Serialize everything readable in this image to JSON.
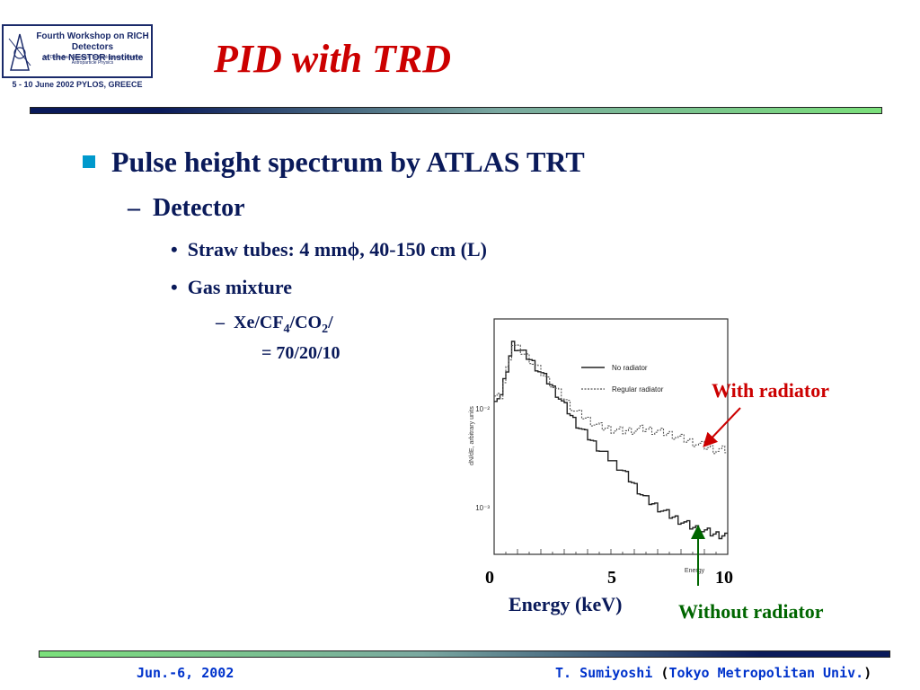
{
  "logo": {
    "line1": "Fourth Workshop on RICH Detectors",
    "line2": "at the NESTOR Institute",
    "line3": "for Deep Sea Research Technology and Neutrino Astroparticle Physics",
    "caption": "5 - 10 June 2002  PYLOS, GREECE"
  },
  "title": "PID with TRD",
  "bullets": {
    "level1": "Pulse height spectrum by ATLAS TRT",
    "level2": "Detector",
    "item1": "Straw tubes: 4 mmϕ, 40-150 cm (L)",
    "item2": "Gas mixture",
    "gas_prefix": "Xe/CF",
    "gas_sub1": "4",
    "gas_mid": "/CO",
    "gas_sub2": "2",
    "gas_suffix": "/",
    "gas_ratio": "= 70/20/10"
  },
  "annotations": {
    "with_radiator": "With radiator",
    "without_radiator": "Without radiator",
    "energy_label": "Energy (keV)",
    "x0": "0",
    "x5": "5",
    "x10": "10"
  },
  "footer": {
    "date": "Jun.-6, 2002",
    "author": "T. Sumiyoshi",
    "open": "(",
    "affiliation": "Tokyo Metropolitan Univ.",
    "close": ")"
  },
  "colors": {
    "title": "#cc0000",
    "text": "#0a1a5a",
    "with_radiator": "#cc0000",
    "without_radiator": "#006600",
    "footer": "#0033cc"
  },
  "chart_data": {
    "type": "line",
    "ylabel": "dN/dE, arbitrary units",
    "xlabel": "Energy",
    "ytick_labels": [
      "10⁻²",
      "10⁻³"
    ],
    "legend": [
      "No radiator",
      "Regular radiator"
    ],
    "legend_position": "top-right",
    "yscale": "log",
    "xlim": [
      0,
      10
    ],
    "series": [
      {
        "name": "No radiator",
        "x": [
          0.3,
          0.8,
          1.5,
          2.5,
          3.5,
          4.5,
          5.5,
          6.5,
          7.5,
          8.5,
          9.5
        ],
        "y": [
          0.02,
          0.06,
          0.045,
          0.025,
          0.012,
          0.007,
          0.0045,
          0.0025,
          0.0018,
          0.0014,
          0.0012
        ]
      },
      {
        "name": "Regular radiator",
        "x": [
          0.3,
          0.8,
          1.5,
          2.5,
          3.5,
          4.5,
          5.5,
          6.5,
          7.5,
          8.5,
          9.5
        ],
        "y": [
          0.02,
          0.06,
          0.045,
          0.026,
          0.015,
          0.011,
          0.01,
          0.0105,
          0.0095,
          0.008,
          0.0068
        ]
      }
    ]
  }
}
